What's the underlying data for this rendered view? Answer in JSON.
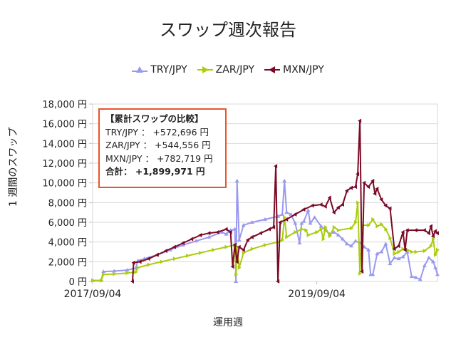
{
  "title": "スワップ週次報告",
  "legend": [
    {
      "name": "TRY/JPY",
      "color": "#9999ee",
      "marker": "triangle-up"
    },
    {
      "name": "ZAR/JPY",
      "color": "#aacc11",
      "marker": "triangle-right"
    },
    {
      "name": "MXN/JPY",
      "color": "#7a0a25",
      "marker": "triangle-left"
    }
  ],
  "annotation": {
    "heading": "【累計スワップの比較】",
    "rows": [
      {
        "label": "TRY/JPY ： +572,696 円"
      },
      {
        "label": "ZAR/JPY ： +544,556 円"
      },
      {
        "label": "MXN/JPY ： +782,719 円"
      }
    ],
    "total": "合計： +1,899,971 円"
  },
  "chart_data": {
    "type": "line",
    "title": "スワップ週次報告",
    "xlabel": "運用週",
    "ylabel": "1 週間のスワップ",
    "ylim": [
      0,
      18000
    ],
    "yticks": [
      "0 円",
      "2,000 円",
      "4,000 円",
      "6,000 円",
      "8,000 円",
      "10,000 円",
      "12,000 円",
      "14,000 円",
      "16,000 円",
      "18,000 円"
    ],
    "xticks": [
      {
        "label": "2017/09/04",
        "week": 0
      },
      {
        "label": "2019/09/04",
        "week": 104
      }
    ],
    "x_weeks_total": 160,
    "grid": true,
    "legend_position": "top",
    "series": [
      {
        "name": "TRY/JPY",
        "color": "#9999ee",
        "points": [
          [
            0,
            100
          ],
          [
            4,
            100
          ],
          [
            5,
            1000
          ],
          [
            10,
            1050
          ],
          [
            16,
            1150
          ],
          [
            20,
            1350
          ],
          [
            21,
            2100
          ],
          [
            24,
            2300
          ],
          [
            30,
            2700
          ],
          [
            36,
            3200
          ],
          [
            42,
            3700
          ],
          [
            48,
            4100
          ],
          [
            54,
            4500
          ],
          [
            60,
            5000
          ],
          [
            62,
            4800
          ],
          [
            64,
            5200
          ],
          [
            66,
            5300
          ],
          [
            66.5,
            0
          ],
          [
            67,
            10200
          ],
          [
            68,
            4200
          ],
          [
            70,
            5700
          ],
          [
            74,
            6000
          ],
          [
            80,
            6300
          ],
          [
            86,
            6600
          ],
          [
            88,
            6800
          ],
          [
            89,
            10200
          ],
          [
            90,
            7000
          ],
          [
            92,
            6800
          ],
          [
            94,
            5900
          ],
          [
            96,
            3900
          ],
          [
            97,
            5900
          ],
          [
            98,
            6100
          ],
          [
            100,
            7200
          ],
          [
            101,
            5900
          ],
          [
            103,
            6500
          ],
          [
            106,
            5600
          ],
          [
            108,
            5200
          ],
          [
            110,
            4800
          ],
          [
            112,
            5000
          ],
          [
            114,
            4700
          ],
          [
            116,
            4300
          ],
          [
            118,
            3800
          ],
          [
            120,
            3600
          ],
          [
            122,
            4100
          ],
          [
            124,
            3900
          ],
          [
            126,
            3500
          ],
          [
            128,
            3200
          ],
          [
            129,
            700
          ],
          [
            130,
            700
          ],
          [
            132,
            2800
          ],
          [
            134,
            3000
          ],
          [
            136,
            3800
          ],
          [
            138,
            1800
          ],
          [
            140,
            2400
          ],
          [
            142,
            2300
          ],
          [
            144,
            2500
          ],
          [
            146,
            3000
          ],
          [
            148,
            500
          ],
          [
            150,
            400
          ],
          [
            152,
            200
          ],
          [
            154,
            1600
          ],
          [
            156,
            2400
          ],
          [
            158,
            2000
          ],
          [
            159,
            1400
          ],
          [
            160,
            700
          ]
        ]
      },
      {
        "name": "ZAR/JPY",
        "color": "#aacc11",
        "points": [
          [
            0,
            100
          ],
          [
            4,
            100
          ],
          [
            5,
            700
          ],
          [
            10,
            750
          ],
          [
            16,
            850
          ],
          [
            20,
            950
          ],
          [
            21,
            1400
          ],
          [
            26,
            1700
          ],
          [
            32,
            2000
          ],
          [
            38,
            2300
          ],
          [
            44,
            2600
          ],
          [
            50,
            2900
          ],
          [
            56,
            3200
          ],
          [
            62,
            3500
          ],
          [
            66,
            3700
          ],
          [
            66.5,
            700
          ],
          [
            67,
            3500
          ],
          [
            68,
            1400
          ],
          [
            70,
            2900
          ],
          [
            74,
            3300
          ],
          [
            80,
            3700
          ],
          [
            86,
            4000
          ],
          [
            88,
            4200
          ],
          [
            89,
            6500
          ],
          [
            90,
            4500
          ],
          [
            94,
            5000
          ],
          [
            97,
            5300
          ],
          [
            99,
            5200
          ],
          [
            100,
            4700
          ],
          [
            104,
            5000
          ],
          [
            106,
            5300
          ],
          [
            107,
            4300
          ],
          [
            108,
            5500
          ],
          [
            110,
            4600
          ],
          [
            112,
            5500
          ],
          [
            114,
            5200
          ],
          [
            120,
            5400
          ],
          [
            122,
            6000
          ],
          [
            123,
            8000
          ],
          [
            124,
            800
          ],
          [
            125,
            5700
          ],
          [
            128,
            5700
          ],
          [
            130,
            6300
          ],
          [
            132,
            5600
          ],
          [
            134,
            5800
          ],
          [
            136,
            5300
          ],
          [
            138,
            4400
          ],
          [
            140,
            2800
          ],
          [
            142,
            3000
          ],
          [
            144,
            3300
          ],
          [
            146,
            3200
          ],
          [
            148,
            3000
          ],
          [
            150,
            3000
          ],
          [
            154,
            3100
          ],
          [
            157,
            3600
          ],
          [
            158,
            4300
          ],
          [
            159,
            2700
          ],
          [
            160,
            3200
          ]
        ]
      },
      {
        "name": "MXN/JPY",
        "color": "#7a0a25",
        "points": [
          [
            0,
            null
          ],
          [
            18,
            null
          ],
          [
            18.5,
            0
          ],
          [
            19,
            1900
          ],
          [
            22,
            2000
          ],
          [
            26,
            2300
          ],
          [
            30,
            2700
          ],
          [
            34,
            3100
          ],
          [
            38,
            3500
          ],
          [
            42,
            3900
          ],
          [
            46,
            4300
          ],
          [
            50,
            4700
          ],
          [
            54,
            4900
          ],
          [
            58,
            5000
          ],
          [
            62,
            5300
          ],
          [
            64,
            5000
          ],
          [
            65,
            1500
          ],
          [
            66,
            3700
          ],
          [
            67,
            2000
          ],
          [
            68,
            3500
          ],
          [
            70,
            3200
          ],
          [
            72,
            4200
          ],
          [
            74,
            4500
          ],
          [
            78,
            4900
          ],
          [
            82,
            5300
          ],
          [
            84,
            5500
          ],
          [
            85,
            11700
          ],
          [
            86,
            0
          ],
          [
            87,
            6000
          ],
          [
            90,
            6300
          ],
          [
            94,
            6800
          ],
          [
            98,
            7300
          ],
          [
            102,
            7700
          ],
          [
            106,
            7800
          ],
          [
            108,
            7600
          ],
          [
            110,
            8500
          ],
          [
            112,
            7000
          ],
          [
            114,
            7500
          ],
          [
            116,
            7800
          ],
          [
            118,
            9200
          ],
          [
            120,
            9500
          ],
          [
            122,
            9600
          ],
          [
            123,
            10900
          ],
          [
            124,
            16300
          ],
          [
            125,
            1000
          ],
          [
            126,
            10000
          ],
          [
            128,
            9600
          ],
          [
            130,
            10200
          ],
          [
            131,
            8900
          ],
          [
            132,
            9400
          ],
          [
            134,
            8300
          ],
          [
            136,
            7700
          ],
          [
            138,
            7400
          ],
          [
            140,
            3300
          ],
          [
            142,
            3600
          ],
          [
            144,
            5000
          ],
          [
            145,
            3200
          ],
          [
            146,
            5200
          ],
          [
            150,
            5200
          ],
          [
            154,
            5200
          ],
          [
            156,
            4900
          ],
          [
            157,
            5600
          ],
          [
            158,
            4600
          ],
          [
            159,
            5100
          ],
          [
            160,
            4900
          ]
        ]
      }
    ],
    "annotations": [
      {
        "text": "【累計スワップの比較】"
      },
      {
        "text": "TRY/JPY ： +572,696 円"
      },
      {
        "text": "ZAR/JPY ： +544,556 円"
      },
      {
        "text": "MXN/JPY ： +782,719 円"
      },
      {
        "text": "合計： +1,899,971 円"
      }
    ]
  },
  "axes": {
    "x_title": "運用週",
    "y_title": "1 週間のスワップ"
  }
}
